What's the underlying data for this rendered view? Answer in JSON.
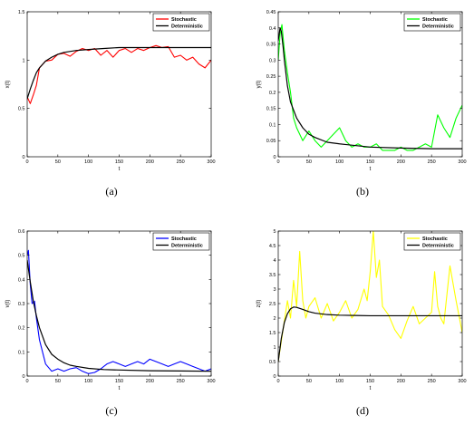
{
  "chart_data": [
    {
      "type": "line",
      "caption": "(a)",
      "xlabel": "t",
      "ylabel": "x(t)",
      "xlim": [
        0,
        300
      ],
      "ylim": [
        0,
        1.5
      ],
      "xticks": [
        "0",
        "50",
        "100",
        "150",
        "200",
        "250",
        "300"
      ],
      "yticks": [
        "0",
        "0.5",
        "1",
        "1.5"
      ],
      "legend": "top-right",
      "series": [
        {
          "name": "Stochastic",
          "color": "#ff0000",
          "x": [
            0,
            5,
            10,
            15,
            20,
            30,
            40,
            50,
            60,
            70,
            80,
            90,
            100,
            110,
            120,
            130,
            140,
            150,
            160,
            170,
            180,
            190,
            200,
            210,
            220,
            230,
            240,
            250,
            260,
            270,
            280,
            290,
            300
          ],
          "y": [
            0.62,
            0.55,
            0.64,
            0.74,
            0.92,
            0.99,
            1.0,
            1.06,
            1.07,
            1.04,
            1.09,
            1.12,
            1.1,
            1.12,
            1.05,
            1.1,
            1.03,
            1.1,
            1.12,
            1.08,
            1.12,
            1.1,
            1.13,
            1.15,
            1.13,
            1.14,
            1.03,
            1.05,
            1.0,
            1.03,
            0.96,
            0.92,
            1.0
          ]
        },
        {
          "name": "Deterministic",
          "color": "#000000",
          "x": [
            0,
            5,
            10,
            15,
            20,
            30,
            40,
            50,
            60,
            80,
            100,
            125,
            150,
            200,
            250,
            300
          ],
          "y": [
            0.6,
            0.7,
            0.79,
            0.87,
            0.92,
            0.99,
            1.03,
            1.06,
            1.08,
            1.1,
            1.11,
            1.12,
            1.13,
            1.13,
            1.13,
            1.13
          ]
        }
      ]
    },
    {
      "type": "line",
      "caption": "(b)",
      "xlabel": "t",
      "ylabel": "y(t)",
      "xlim": [
        0,
        300
      ],
      "ylim": [
        0,
        0.45
      ],
      "xticks": [
        "0",
        "50",
        "100",
        "150",
        "200",
        "250",
        "300"
      ],
      "yticks": [
        "0",
        "0.05",
        "0.1",
        "0.15",
        "0.2",
        "0.25",
        "0.3",
        "0.35",
        "0.4",
        "0.45"
      ],
      "legend": "top-right",
      "series": [
        {
          "name": "Stochastic",
          "color": "#00ff00",
          "x": [
            0,
            3,
            6,
            10,
            15,
            20,
            25,
            30,
            35,
            40,
            50,
            60,
            70,
            80,
            90,
            100,
            110,
            120,
            130,
            140,
            150,
            160,
            170,
            180,
            190,
            200,
            210,
            220,
            230,
            240,
            250,
            260,
            270,
            280,
            290,
            300
          ],
          "y": [
            0.3,
            0.38,
            0.41,
            0.33,
            0.26,
            0.2,
            0.12,
            0.09,
            0.07,
            0.05,
            0.08,
            0.05,
            0.03,
            0.05,
            0.07,
            0.09,
            0.05,
            0.03,
            0.04,
            0.03,
            0.03,
            0.04,
            0.02,
            0.02,
            0.02,
            0.03,
            0.02,
            0.02,
            0.03,
            0.04,
            0.03,
            0.13,
            0.09,
            0.06,
            0.12,
            0.16
          ]
        },
        {
          "name": "Deterministic",
          "color": "#000000",
          "x": [
            0,
            3,
            5,
            8,
            10,
            15,
            20,
            30,
            40,
            50,
            60,
            80,
            100,
            125,
            150,
            200,
            250,
            300
          ],
          "y": [
            0.36,
            0.4,
            0.39,
            0.34,
            0.3,
            0.22,
            0.17,
            0.12,
            0.09,
            0.07,
            0.06,
            0.045,
            0.04,
            0.035,
            0.03,
            0.027,
            0.025,
            0.025
          ]
        }
      ]
    },
    {
      "type": "line",
      "caption": "(c)",
      "xlabel": "t",
      "ylabel": "v(t)",
      "xlim": [
        0,
        300
      ],
      "ylim": [
        0,
        0.6
      ],
      "xticks": [
        "0",
        "50",
        "100",
        "150",
        "200",
        "250",
        "300"
      ],
      "yticks": [
        "0",
        "0.1",
        "0.2",
        "0.3",
        "0.4",
        "0.5",
        "0.6"
      ],
      "legend": "top-right",
      "series": [
        {
          "name": "Stochastic",
          "color": "#0000ff",
          "x": [
            0,
            2,
            5,
            8,
            12,
            15,
            20,
            25,
            30,
            40,
            50,
            60,
            70,
            80,
            90,
            100,
            110,
            120,
            130,
            140,
            150,
            160,
            170,
            180,
            190,
            200,
            210,
            220,
            230,
            240,
            250,
            260,
            270,
            280,
            290,
            300
          ],
          "y": [
            0.5,
            0.52,
            0.38,
            0.3,
            0.31,
            0.24,
            0.15,
            0.1,
            0.05,
            0.02,
            0.03,
            0.02,
            0.03,
            0.035,
            0.02,
            0.01,
            0.015,
            0.03,
            0.05,
            0.06,
            0.05,
            0.04,
            0.05,
            0.06,
            0.05,
            0.07,
            0.06,
            0.05,
            0.04,
            0.05,
            0.06,
            0.05,
            0.04,
            0.03,
            0.02,
            0.03
          ]
        },
        {
          "name": "Deterministic",
          "color": "#000000",
          "x": [
            0,
            5,
            10,
            15,
            20,
            30,
            40,
            50,
            60,
            70,
            80,
            100,
            125,
            150,
            200,
            250,
            300
          ],
          "y": [
            0.48,
            0.39,
            0.31,
            0.25,
            0.2,
            0.13,
            0.09,
            0.07,
            0.055,
            0.045,
            0.04,
            0.032,
            0.027,
            0.025,
            0.022,
            0.021,
            0.02
          ]
        }
      ]
    },
    {
      "type": "line",
      "caption": "(d)",
      "xlabel": "t",
      "ylabel": "z(t)",
      "xlim": [
        0,
        300
      ],
      "ylim": [
        0,
        5
      ],
      "xticks": [
        "0",
        "50",
        "100",
        "150",
        "200",
        "250",
        "300"
      ],
      "yticks": [
        "0",
        "0.5",
        "1",
        "1.5",
        "2",
        "2.5",
        "3",
        "3.5",
        "4",
        "4.5",
        "5"
      ],
      "legend": "top-right",
      "series": [
        {
          "name": "Stochastic",
          "color": "#ffff00",
          "x": [
            0,
            5,
            10,
            15,
            20,
            25,
            30,
            35,
            40,
            45,
            50,
            60,
            70,
            80,
            90,
            100,
            110,
            120,
            130,
            140,
            145,
            150,
            155,
            160,
            165,
            170,
            180,
            190,
            200,
            210,
            220,
            230,
            240,
            250,
            255,
            260,
            265,
            270,
            280,
            290,
            300
          ],
          "y": [
            0.5,
            1.2,
            1.9,
            2.6,
            2.0,
            3.3,
            2.4,
            4.3,
            2.6,
            2.0,
            2.4,
            2.7,
            2.0,
            2.5,
            1.9,
            2.2,
            2.6,
            2.0,
            2.3,
            3.0,
            2.6,
            3.6,
            5.0,
            3.4,
            4.0,
            2.4,
            2.1,
            1.6,
            1.3,
            1.9,
            2.4,
            1.8,
            2.0,
            2.2,
            3.6,
            2.4,
            2.0,
            1.8,
            3.8,
            2.6,
            1.5
          ]
        },
        {
          "name": "Deterministic",
          "color": "#000000",
          "x": [
            0,
            5,
            10,
            15,
            20,
            25,
            30,
            40,
            50,
            60,
            80,
            100,
            125,
            150,
            200,
            250,
            300
          ],
          "y": [
            0.5,
            1.3,
            1.85,
            2.15,
            2.32,
            2.38,
            2.37,
            2.3,
            2.22,
            2.17,
            2.12,
            2.1,
            2.09,
            2.08,
            2.08,
            2.08,
            2.08
          ]
        }
      ]
    }
  ]
}
